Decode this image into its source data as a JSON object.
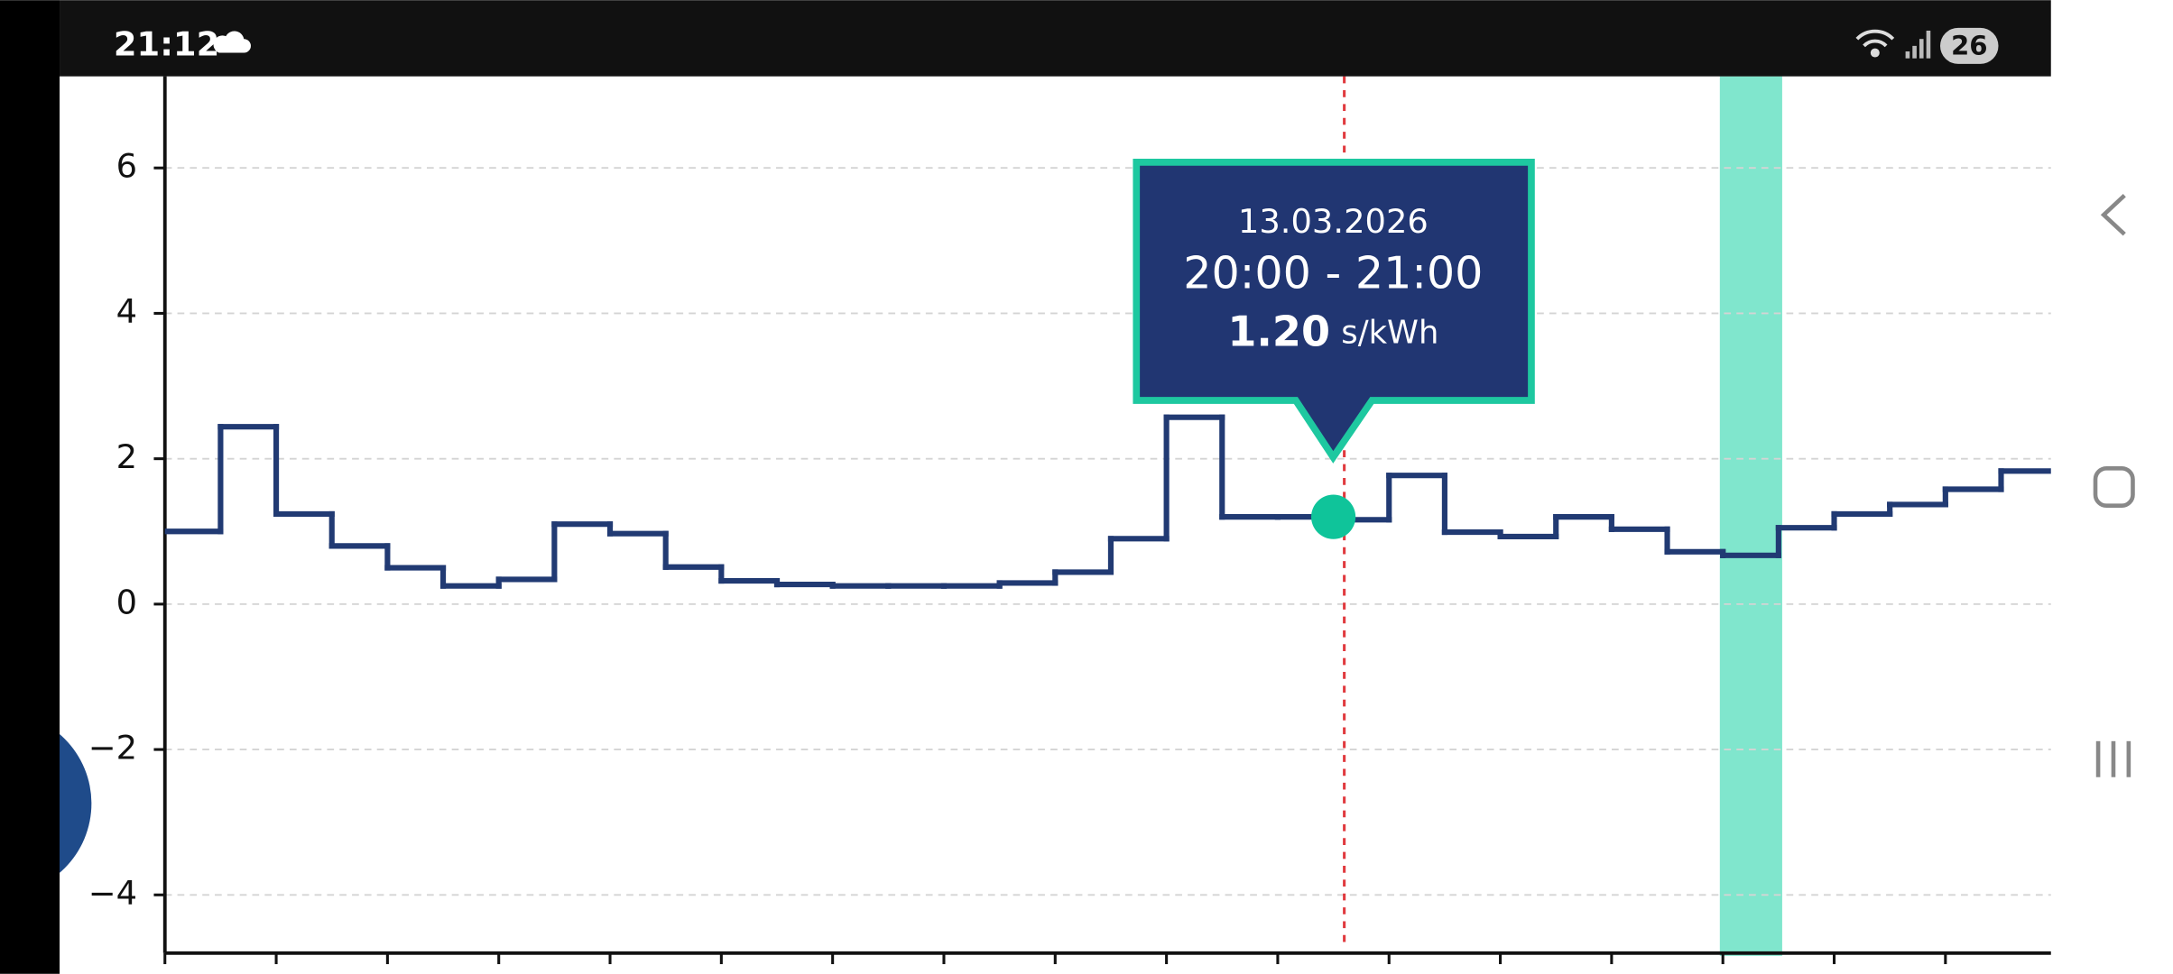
{
  "status_bar": {
    "time": "21:12",
    "battery": "26"
  },
  "chart_data": {
    "type": "step",
    "values": [
      1.0,
      2.44,
      1.24,
      0.8,
      0.5,
      0.25,
      0.34,
      1.1,
      0.97,
      0.51,
      0.32,
      0.27,
      0.25,
      0.25,
      0.25,
      0.29,
      0.44,
      0.9,
      2.57,
      1.2,
      1.2,
      1.16,
      1.77,
      0.99,
      0.93,
      1.2,
      1.03,
      0.72,
      0.67,
      1.05,
      1.24,
      1.37,
      1.58,
      1.83
    ],
    "color": "#213a73",
    "ylim": [
      -4.8,
      7.26
    ],
    "yticks": [
      {
        "value": -4,
        "label": "−4"
      },
      {
        "value": -2,
        "label": "−2"
      },
      0,
      2,
      4,
      6
    ],
    "grid": true
  },
  "tooltip": {
    "date": "13.03.2026",
    "time_range": "20:00 - 21:00",
    "value": 1.2,
    "value_label": "1.20",
    "unit": "s/kWh"
  }
}
